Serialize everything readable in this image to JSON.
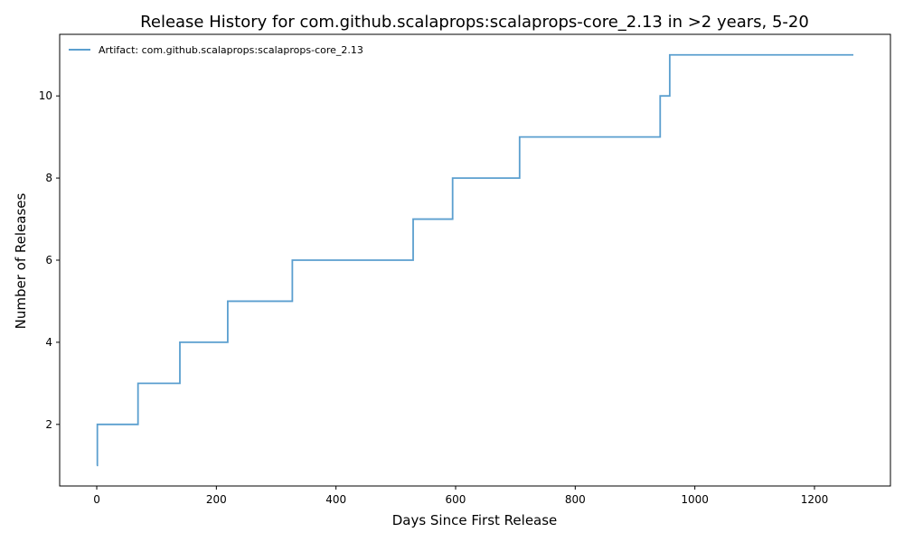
{
  "chart_data": {
    "type": "line",
    "step": true,
    "title": "Release History for com.github.scalaprops:scalaprops-core_2.13 in >2 years, 5-20",
    "xlabel": "Days Since First Release",
    "ylabel": "Number of Releases",
    "xlim": [
      -62,
      1327
    ],
    "ylim": [
      0.5,
      11.5
    ],
    "xticks": [
      0,
      200,
      400,
      600,
      800,
      1000,
      1200
    ],
    "yticks": [
      2,
      4,
      6,
      8,
      10
    ],
    "grid": false,
    "legend_position": "top-left",
    "series": [
      {
        "name": "Artifact: com.github.scalaprops:scalaprops-core_2.13",
        "color": "#5b9fcf",
        "x": [
          0,
          1,
          69,
          139,
          219,
          327,
          529,
          595,
          707,
          942,
          958,
          1265
        ],
        "y": [
          1,
          2,
          3,
          4,
          5,
          6,
          7,
          8,
          9,
          10,
          11,
          11
        ]
      }
    ]
  }
}
